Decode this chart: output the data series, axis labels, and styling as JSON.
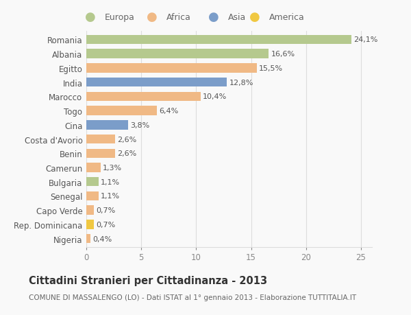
{
  "categories": [
    "Romania",
    "Albania",
    "Egitto",
    "India",
    "Marocco",
    "Togo",
    "Cina",
    "Costa d'Avorio",
    "Benin",
    "Camerun",
    "Bulgaria",
    "Senegal",
    "Capo Verde",
    "Rep. Dominicana",
    "Nigeria"
  ],
  "values": [
    24.1,
    16.6,
    15.5,
    12.8,
    10.4,
    6.4,
    3.8,
    2.6,
    2.6,
    1.3,
    1.1,
    1.1,
    0.7,
    0.7,
    0.4
  ],
  "labels": [
    "24,1%",
    "16,6%",
    "15,5%",
    "12,8%",
    "10,4%",
    "6,4%",
    "3,8%",
    "2,6%",
    "2,6%",
    "1,3%",
    "1,1%",
    "1,1%",
    "0,7%",
    "0,7%",
    "0,4%"
  ],
  "colors": [
    "#b5c98e",
    "#b5c98e",
    "#f0b985",
    "#7b9dc9",
    "#f0b985",
    "#f0b985",
    "#7b9dc9",
    "#f0b985",
    "#f0b985",
    "#f0b985",
    "#b5c98e",
    "#f0b985",
    "#f0b985",
    "#f0c842",
    "#f0b985"
  ],
  "legend_labels": [
    "Europa",
    "Africa",
    "Asia",
    "America"
  ],
  "legend_colors": [
    "#b5c98e",
    "#f0b985",
    "#7b9dc9",
    "#f0c842"
  ],
  "title": "Cittadini Stranieri per Cittadinanza - 2013",
  "subtitle": "COMUNE DI MASSALENGO (LO) - Dati ISTAT al 1° gennaio 2013 - Elaborazione TUTTITALIA.IT",
  "xlim": [
    0,
    26
  ],
  "xticks": [
    0,
    5,
    10,
    15,
    20,
    25
  ],
  "background_color": "#f9f9f9",
  "grid_color": "#dddddd",
  "bar_height": 0.65,
  "title_fontsize": 10.5,
  "subtitle_fontsize": 7.5,
  "tick_fontsize": 8.5,
  "label_fontsize": 8,
  "legend_fontsize": 9
}
